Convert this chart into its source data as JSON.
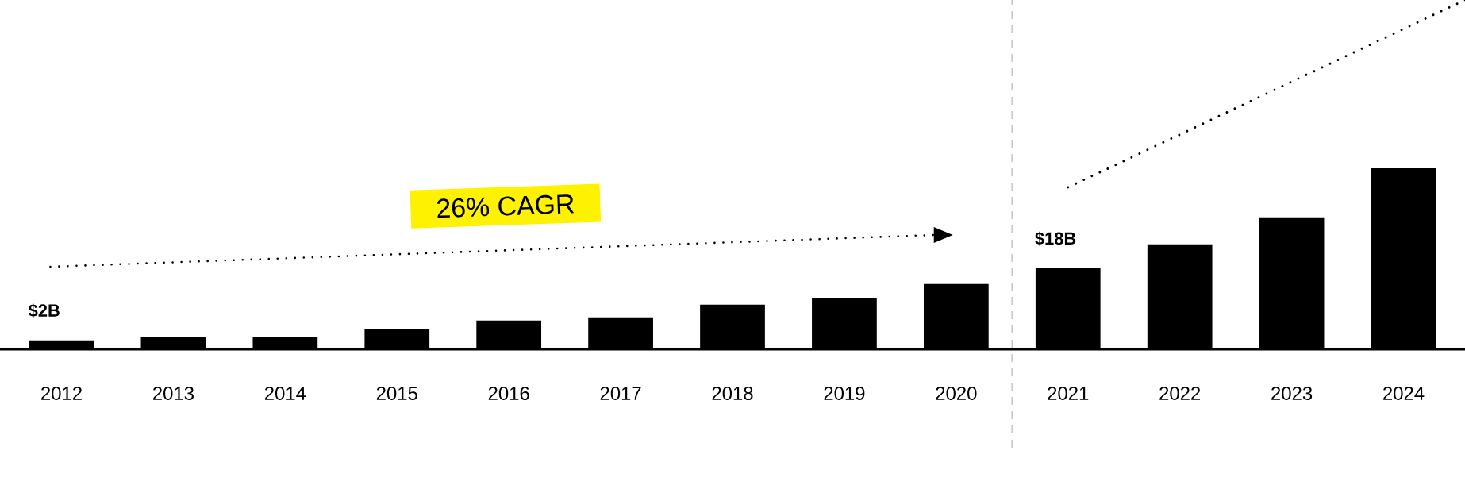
{
  "chart_data": {
    "type": "bar",
    "categories": [
      "2012",
      "2013",
      "2014",
      "2015",
      "2016",
      "2017",
      "2018",
      "2019",
      "2020",
      "2021",
      "2022",
      "2023",
      "2024"
    ],
    "values": [
      2,
      2.8,
      2.8,
      4.6,
      6.4,
      7.1,
      9.9,
      11.3,
      14.5,
      18,
      23.3,
      29.3,
      40.2
    ],
    "color": "#000000",
    "value_labels": [
      "$2B",
      null,
      null,
      null,
      null,
      null,
      null,
      null,
      null,
      "$18B",
      null,
      null,
      null
    ],
    "annotations": [
      "26% CAGR"
    ],
    "grid": false
  }
}
